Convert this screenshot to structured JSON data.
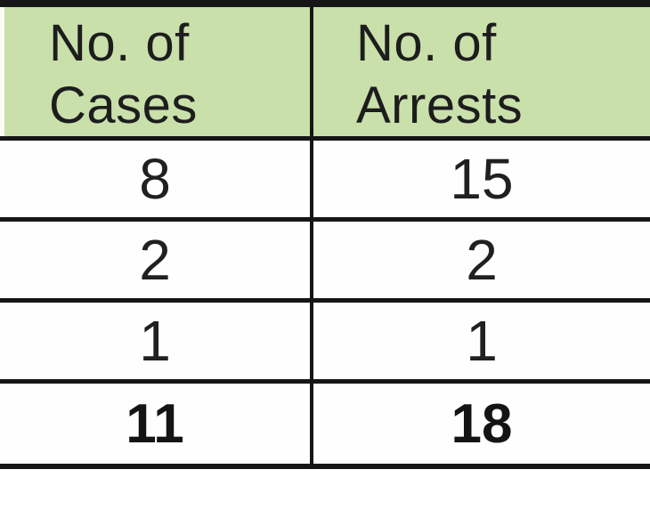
{
  "chart_data": {
    "type": "table",
    "columns": [
      "No. of Cases",
      "No. of Arrests"
    ],
    "rows": [
      [
        8,
        15
      ],
      [
        2,
        2
      ],
      [
        1,
        1
      ]
    ],
    "totals": [
      11,
      18
    ],
    "layout_hints": {
      "header_background": "#c9e0ab",
      "grid": "horizontal lines + single center column divider, black",
      "totals_row_bold": true
    }
  },
  "table": {
    "columns": [
      {
        "line1": "No. of",
        "line2": "Cases"
      },
      {
        "line1": "No. of",
        "line2": "Arrests"
      }
    ],
    "rows": [
      [
        "8",
        "15"
      ],
      [
        "2",
        "2"
      ],
      [
        "1",
        "1"
      ]
    ],
    "totals": [
      "11",
      "18"
    ]
  },
  "colors": {
    "header_bg": "#c9e0ab",
    "border": "#161616",
    "text": "#1d1d1d",
    "page_bg": "#ffffff"
  }
}
